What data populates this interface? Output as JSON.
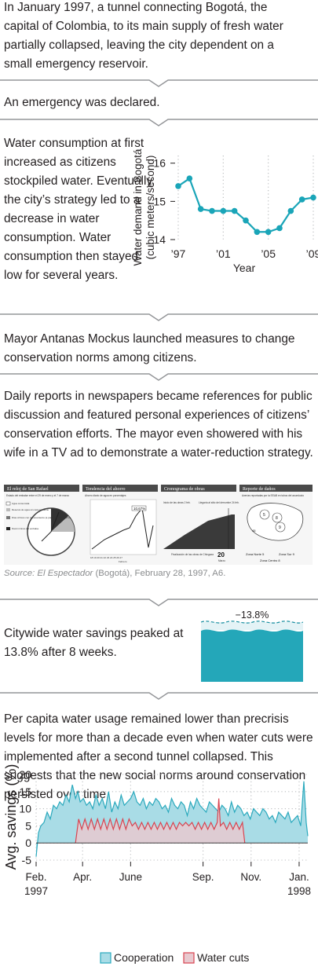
{
  "sections": {
    "intro": "In January 1997, a tunnel connecting Bogotá, the capital of Colombia, to its main supply of fresh water partially collapsed, leaving the city dependent on a small emergency reservoir.",
    "emergency": "An emergency was declared.",
    "consumption": "Water consumption at first increased as citizens stockpiled water. Eventually, the city’s strategy led to a decrease in water consumption. Water consumption then stayed low for several years.",
    "mayor": "Mayor Antanas Mockus launched measures to change conservation norms among citizens.",
    "reports": "Daily reports in newspapers became references for public discussion and featured personal experiences of citizens’ conservation efforts. The mayor even showered with his wife in a TV ad to demonstrate a water-reduction strategy.",
    "savings": "Citywide water savings peaked at 13.8% after 8 weeks.",
    "percapita": "Per capita water usage remained lower than precrisis levels for more than a decade even when water cuts were implemented after a second tunnel collapsed. This suggests that the new social norms around conservation persisted over time."
  },
  "source": {
    "prefix": "Source: ",
    "publication": "El Espectador",
    "rest": " (Bogotá), February 28, 1997, A6."
  },
  "newspaper": {
    "panels": [
      "El reloj de San Rafael",
      "Tendencia del ahorro",
      "Cronograma de obras",
      "Reporte de daños"
    ],
    "clock_caption": "Estado del embalse entre el 29 de enero y el 7 de marzo",
    "clock_legend": [
      "Agua consumida",
      "Reserva de agua sin racionamiento",
      "Días críticos con racionamiento (a partir del 6 de marzo)",
      "Nivel mínimo del embalse"
    ],
    "trend_caption": "Ahorro diario de agua en porcentajes",
    "trend_value": "10,67%",
    "trend_month": "Febrero",
    "trend_days": [
      "18",
      "19",
      "20",
      "21",
      "22",
      "23",
      "24",
      "25",
      "26",
      "27"
    ],
    "trend_yticks": [
      "0",
      "2",
      "4",
      "6",
      "8",
      "10",
      "12",
      "14",
      "16"
    ],
    "works_caption1": "Inicio de las obras 2 feb.",
    "works_caption2": "Llegaría al sitio del derrumbe 24 feb.",
    "works_caption3": "Finalización de las obras de Chingaza",
    "works_date": "20",
    "works_month": "Marzo",
    "damage_caption": "Averías reportadas por la EEAB en tubos del acueducto",
    "damage_zones": [
      "Zona Norte  5",
      "Zona Sur  9",
      "Zona Centro  8"
    ],
    "damage_map_numbers": [
      "5",
      "8",
      "9",
      "45"
    ]
  },
  "savings_graphic": {
    "label": "−13.8%",
    "value_percent": -13.8,
    "colors": {
      "water": "#24a7b9",
      "line": "#1a8fa1"
    }
  },
  "chart_data": [
    {
      "type": "line",
      "title": "",
      "xlabel": "Year",
      "ylabel_line1": "Water demand in Bogotá",
      "ylabel_line2": "(cubic meters/second)",
      "x": [
        1997,
        1998,
        1999,
        2000,
        2001,
        2002,
        2003,
        2004,
        2005,
        2006,
        2007,
        2008,
        2009
      ],
      "values": [
        15.4,
        15.6,
        14.8,
        14.75,
        14.75,
        14.75,
        14.5,
        14.2,
        14.2,
        14.3,
        14.75,
        15.05,
        15.1
      ],
      "xticks": [
        1997,
        2001,
        2005,
        2009
      ],
      "xtick_labels": [
        "’97",
        "’01",
        "’05",
        "’09"
      ],
      "yticks": [
        14,
        15,
        16
      ],
      "ylim": [
        14,
        16.2
      ],
      "xlim": [
        1997,
        2009
      ],
      "color": "#1aa5b8"
    },
    {
      "type": "area",
      "title": "",
      "ylabel": "Avg. savings (%)",
      "xlabel": "",
      "ylim": [
        -5,
        20
      ],
      "yticks": [
        -5,
        0,
        5,
        10,
        15,
        20
      ],
      "x_range_days": [
        0,
        345
      ],
      "xticks_days": [
        0,
        59,
        120,
        212,
        273,
        334
      ],
      "xtick_labels_line1": [
        "Feb.",
        "Apr.",
        "June",
        "Sep.",
        "Nov.",
        "Jan."
      ],
      "xtick_labels_line2": [
        "1997",
        "",
        "",
        "",
        "",
        "1998"
      ],
      "grid": true,
      "legend_position": "bottom",
      "series": [
        {
          "name": "Cooperation",
          "color": "#2aa9bd",
          "fill": "#a9dce6",
          "x_days": [
            0,
            3,
            6,
            10,
            14,
            18,
            22,
            26,
            30,
            34,
            38,
            42,
            46,
            50,
            53,
            56,
            60,
            64,
            68,
            72,
            76,
            80,
            84,
            88,
            92,
            96,
            100,
            104,
            108,
            112,
            116,
            120,
            124,
            128,
            132,
            136,
            140,
            144,
            148,
            152,
            156,
            160,
            164,
            168,
            172,
            176,
            180,
            184,
            188,
            192,
            196,
            200,
            204,
            208,
            212,
            216,
            220,
            224,
            228,
            232,
            236,
            240,
            244,
            248,
            252,
            256,
            260,
            264,
            268,
            272,
            276,
            280,
            284,
            288,
            292,
            296,
            300,
            304,
            308,
            312,
            316,
            320,
            324,
            328,
            332,
            336,
            340,
            343,
            345
          ],
          "values": [
            -4,
            3,
            5,
            6,
            9,
            7,
            11,
            10,
            12,
            11,
            14,
            12,
            17,
            13,
            15,
            12,
            13,
            11,
            12,
            10,
            14,
            11,
            13,
            10,
            15,
            9,
            12,
            10,
            14,
            11,
            12,
            13,
            15,
            12,
            11,
            13,
            10,
            12,
            11,
            13,
            12,
            10,
            11,
            9,
            13,
            11,
            10,
            12,
            11,
            8,
            12,
            10,
            13,
            11,
            10,
            9,
            12,
            11,
            10,
            9,
            11,
            10,
            8,
            12,
            9,
            11,
            10,
            8,
            9,
            7,
            10,
            9,
            8,
            10,
            9,
            7,
            8,
            6,
            9,
            8,
            7,
            9,
            6,
            7,
            8,
            5,
            18,
            6,
            2
          ]
        },
        {
          "name": "Water cuts",
          "color": "#d9434f",
          "fill": "#e8c9cf",
          "x_days": [
            50,
            54,
            58,
            62,
            66,
            70,
            74,
            78,
            82,
            86,
            90,
            94,
            98,
            102,
            106,
            110,
            114,
            118,
            122,
            126,
            130,
            134,
            138,
            142,
            146,
            150,
            154,
            158,
            162,
            166,
            170,
            174,
            178,
            182,
            186,
            190,
            194,
            198,
            202,
            206,
            210,
            214,
            218,
            222,
            226,
            230,
            232,
            234,
            238,
            242,
            246,
            250,
            254,
            258,
            262,
            265
          ],
          "values": [
            0,
            7,
            4,
            7,
            4,
            7,
            4,
            7,
            4,
            7,
            4,
            7,
            4,
            7,
            4,
            7,
            4,
            7,
            5,
            6,
            4,
            6,
            4,
            6,
            4,
            6,
            4,
            6,
            4,
            6,
            4,
            6,
            4,
            6,
            5,
            6,
            5,
            6,
            4,
            6,
            4,
            6,
            4,
            6,
            4,
            6,
            13,
            5,
            6,
            4,
            6,
            4,
            6,
            4,
            6,
            0
          ]
        }
      ]
    }
  ]
}
